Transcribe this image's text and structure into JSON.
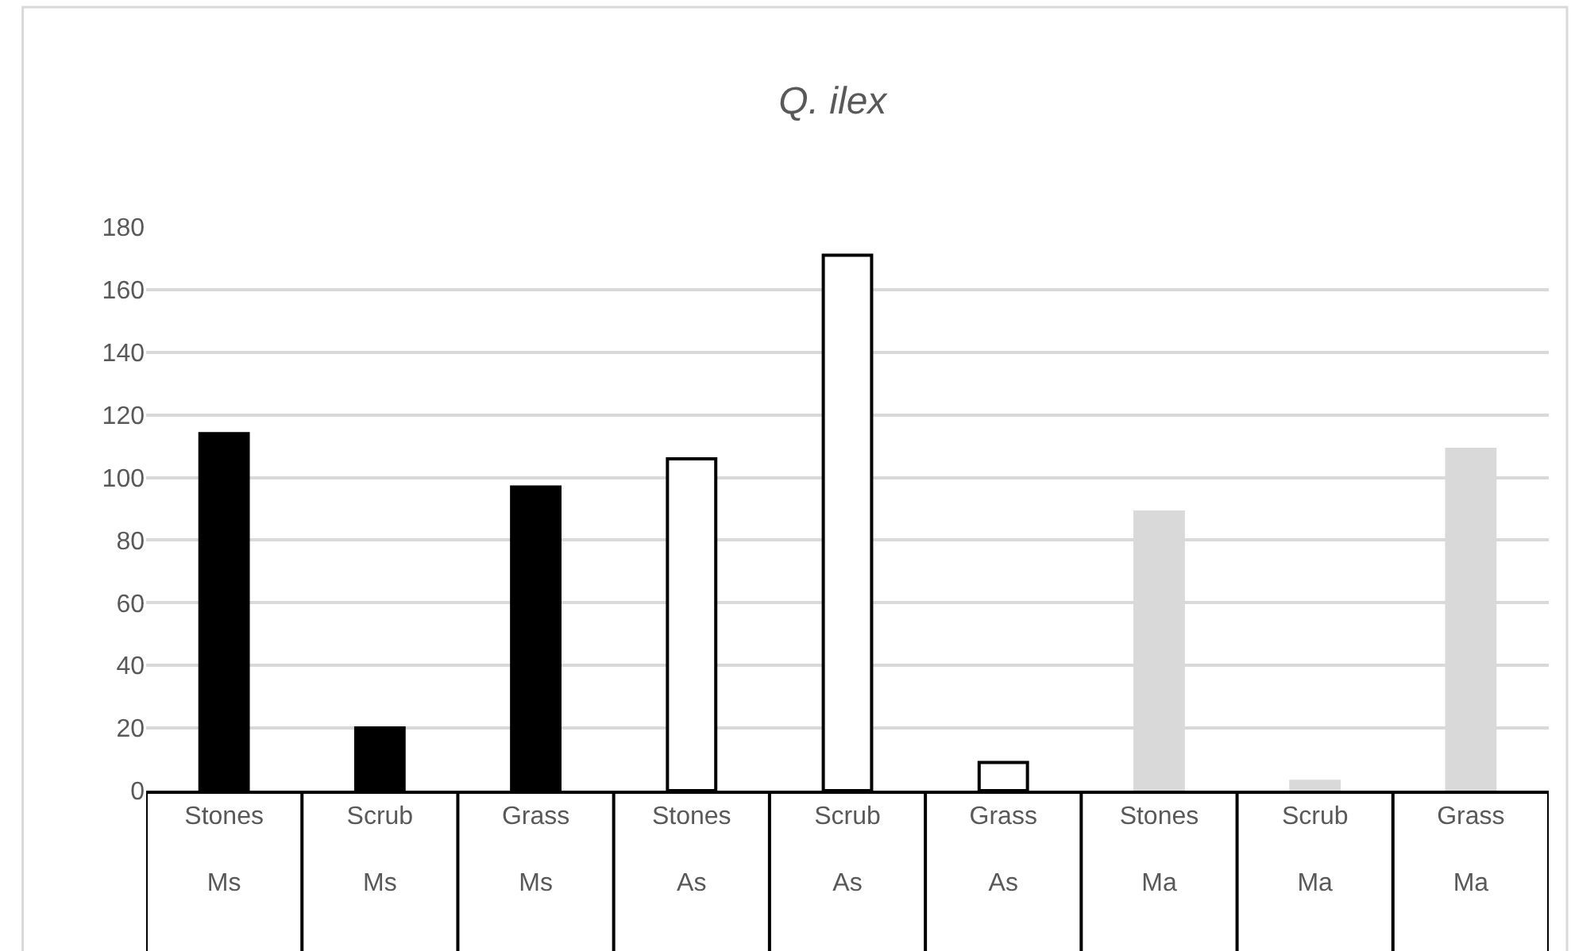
{
  "chart_data": {
    "type": "bar",
    "title": "Q. ilex",
    "categories": [
      "Stones\nMs",
      "Scrub\nMs",
      "Grass\nMs",
      "Stones\nAs",
      "Scrub\nAs",
      "Grass\nAs",
      "Stones\nMa",
      "Scrub\nMa",
      "Grass\nMa"
    ],
    "values": [
      114,
      20,
      97,
      106,
      171,
      9,
      89,
      3,
      109
    ],
    "colors": [
      "#000000",
      "#000000",
      "#000000",
      "#ffffff",
      "#ffffff",
      "#ffffff",
      "#d9d9d9",
      "#d9d9d9",
      "#d9d9d9"
    ],
    "ylim": [
      0,
      180
    ],
    "yticks": [
      0,
      20,
      40,
      60,
      80,
      100,
      120,
      140,
      160,
      180
    ],
    "grid": "y"
  }
}
